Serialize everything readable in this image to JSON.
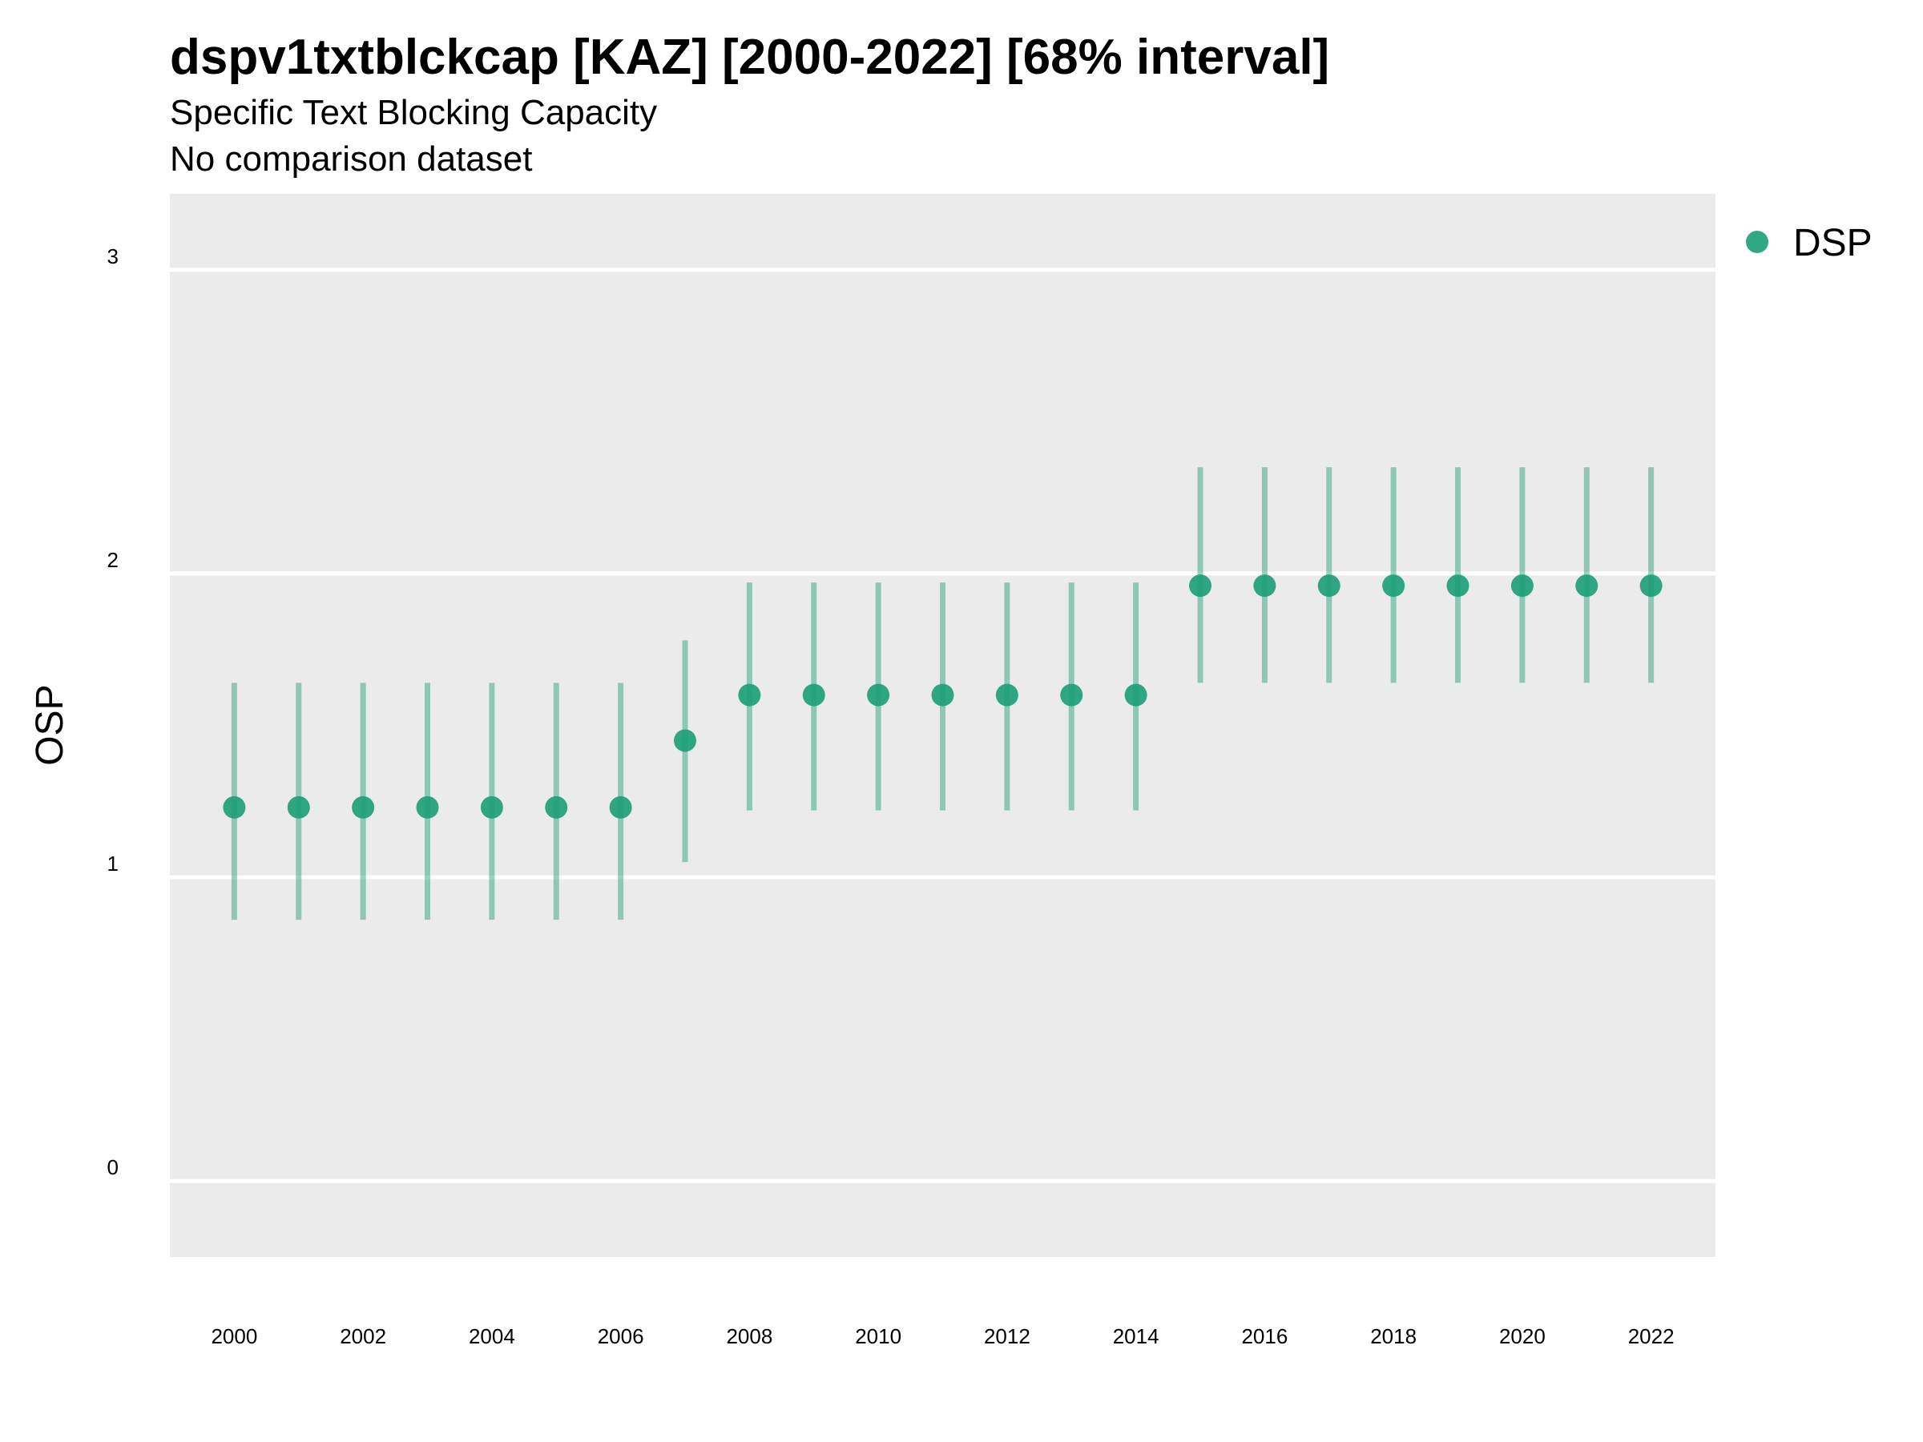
{
  "chart_data": {
    "type": "scatter",
    "title": "dspv1txtblckcap [KAZ] [2000-2022] [68% interval]",
    "subtitle": "Specific Text Blocking Capacity",
    "caption": "No comparison dataset",
    "ylabel": "OSP",
    "xlabel": "",
    "xlim": [
      1999,
      2023
    ],
    "ylim": [
      -0.25,
      3.25
    ],
    "x_ticks": [
      "2000",
      "2002",
      "2004",
      "2006",
      "2008",
      "2010",
      "2012",
      "2014",
      "2016",
      "2018",
      "2020",
      "2022"
    ],
    "y_ticks": [
      "0",
      "1",
      "2",
      "3"
    ],
    "grid": true,
    "legend_position": "right",
    "colors": {
      "point": "#1b9e77",
      "panel": "#ebebeb",
      "grid": "#ffffff"
    },
    "series": [
      {
        "name": "DSP",
        "x": [
          2000,
          2001,
          2002,
          2003,
          2004,
          2005,
          2006,
          2007,
          2008,
          2009,
          2010,
          2011,
          2012,
          2013,
          2014,
          2015,
          2016,
          2017,
          2018,
          2019,
          2020,
          2021,
          2022
        ],
        "y": [
          1.23,
          1.23,
          1.23,
          1.23,
          1.23,
          1.23,
          1.23,
          1.45,
          1.6,
          1.6,
          1.6,
          1.6,
          1.6,
          1.6,
          1.6,
          1.96,
          1.96,
          1.96,
          1.96,
          1.96,
          1.96,
          1.96,
          1.96
        ],
        "lower": [
          0.86,
          0.86,
          0.86,
          0.86,
          0.86,
          0.86,
          0.86,
          1.05,
          1.22,
          1.22,
          1.22,
          1.22,
          1.22,
          1.22,
          1.22,
          1.64,
          1.64,
          1.64,
          1.64,
          1.64,
          1.64,
          1.64,
          1.64
        ],
        "upper": [
          1.64,
          1.64,
          1.64,
          1.64,
          1.64,
          1.64,
          1.64,
          1.78,
          1.97,
          1.97,
          1.97,
          1.97,
          1.97,
          1.97,
          1.97,
          2.35,
          2.35,
          2.35,
          2.35,
          2.35,
          2.35,
          2.35,
          2.35
        ]
      }
    ]
  }
}
